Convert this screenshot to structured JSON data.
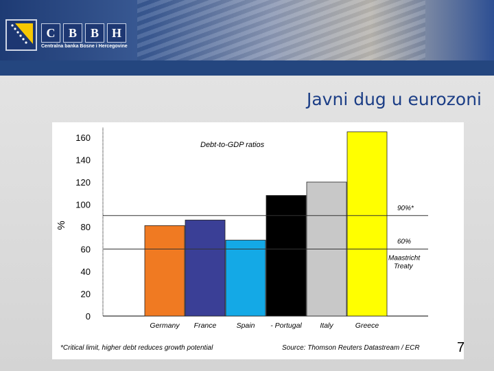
{
  "header": {
    "brand_letters": [
      "C",
      "B",
      "B",
      "H"
    ],
    "brand_subtitle": "Centralna banka Bosne i Hercegovine"
  },
  "slide": {
    "title": "Javni dug u eurozoni",
    "number": "7"
  },
  "chart_data": {
    "type": "bar",
    "annotation": "Debt-to-GDP ratios",
    "ylabel": "%",
    "ylim": [
      0,
      160
    ],
    "yticks": [
      "0",
      "20",
      "40",
      "60",
      "80",
      "100",
      "120",
      "140",
      "160"
    ],
    "categories": [
      "Germany",
      "France",
      "Spain",
      "- Portugal",
      "Italy",
      "Greece"
    ],
    "values": [
      81,
      86,
      68,
      108,
      120,
      165
    ],
    "colors": [
      "#f07a22",
      "#3a3f96",
      "#14a9e6",
      "#000000",
      "#c8c8c8",
      "#ffff00"
    ],
    "reference_lines": [
      {
        "value": 90,
        "label": "90%*"
      },
      {
        "value": 60,
        "label": "60%",
        "sublabel_1": "Maastricht",
        "sublabel_2": "Treaty"
      }
    ],
    "footnote": "*Critical limit, higher debt reduces growth potential",
    "source": "Source: Thomson Reuters Datastream / ECR",
    "grid": false
  }
}
